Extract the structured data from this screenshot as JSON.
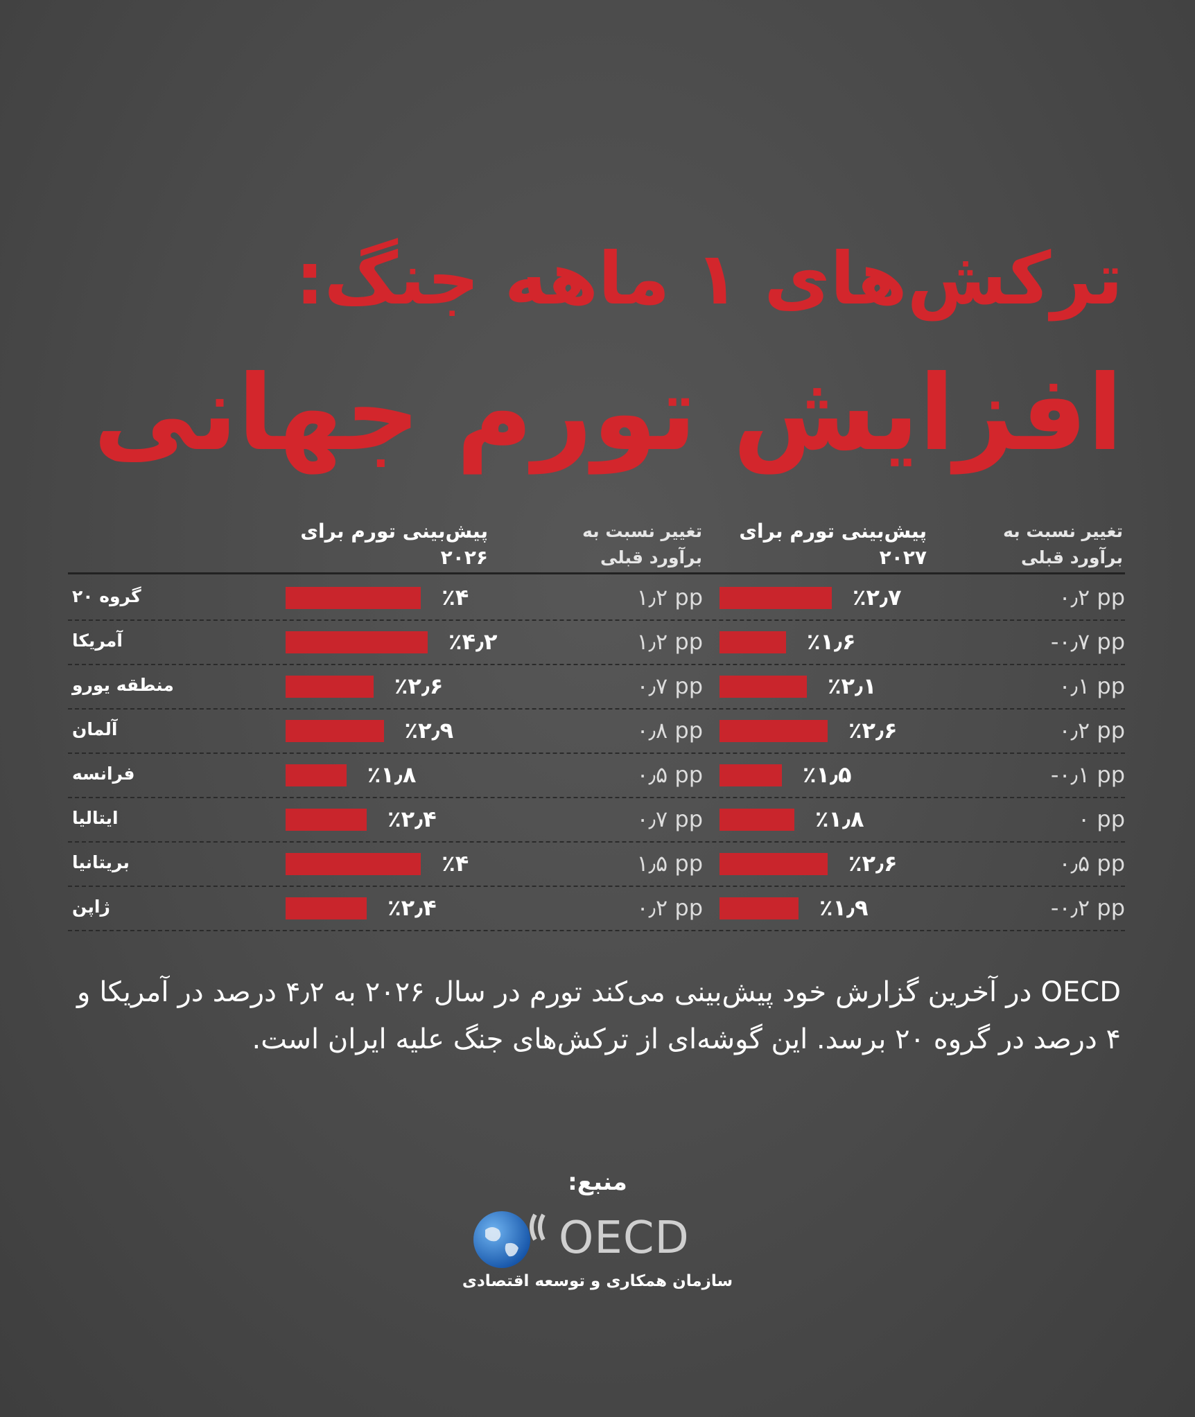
{
  "title": "ترکش‌های ۱ ماهه جنگ:",
  "subtitle": "افزایش تورم جهانی",
  "table": {
    "headers": [
      [
        "پیش‌بینی تورم برای",
        "۲۰۲۶"
      ],
      [
        "تغییر نسبت به",
        "برآورد قبلی"
      ],
      [
        "پیش‌بینی تورم برای",
        "۲۰۲۷"
      ],
      [
        "تغییر نسبت به",
        "برآورد قبلی"
      ]
    ],
    "rows": [
      {
        "country": "گروه ۲۰",
        "forecast_2026": {
          "value": 4,
          "label": "٪۴"
        },
        "change_2026": "۱٫۲ pp",
        "forecast_2027": {
          "value": 2.7,
          "label": "٪۲٫۷"
        },
        "change_2027": "۰٫۲ pp"
      },
      {
        "country": "آمریکا",
        "forecast_2026": {
          "value": 4.2,
          "label": "٪۴٫۲"
        },
        "change_2026": "۱٫۲ pp",
        "forecast_2027": {
          "value": 1.6,
          "label": "٪۱٫۶"
        },
        "change_2027": "-۰٫۷ pp"
      },
      {
        "country": "منطقه یورو",
        "forecast_2026": {
          "value": 2.6,
          "label": "٪۲٫۶"
        },
        "change_2026": "۰٫۷ pp",
        "forecast_2027": {
          "value": 2.1,
          "label": "٪۲٫۱"
        },
        "change_2027": "۰٫۱ pp"
      },
      {
        "country": "آلمان",
        "forecast_2026": {
          "value": 2.9,
          "label": "٪۲٫۹"
        },
        "change_2026": "۰٫۸ pp",
        "forecast_2027": {
          "value": 2.6,
          "label": "٪۲٫۶"
        },
        "change_2027": "۰٫۲ pp"
      },
      {
        "country": "فرانسه",
        "forecast_2026": {
          "value": 1.8,
          "label": "٪۱٫۸"
        },
        "change_2026": "۰٫۵ pp",
        "forecast_2027": {
          "value": 1.5,
          "label": "٪۱٫۵"
        },
        "change_2027": "-۰٫۱ pp"
      },
      {
        "country": "ایتالیا",
        "forecast_2026": {
          "value": 2.4,
          "label": "٪۲٫۴"
        },
        "change_2026": "۰٫۷ pp",
        "forecast_2027": {
          "value": 1.8,
          "label": "٪۱٫۸"
        },
        "change_2027": "۰ pp"
      },
      {
        "country": "بریتانیا",
        "forecast_2026": {
          "value": 4,
          "label": "٪۴"
        },
        "change_2026": "۱٫۵ pp",
        "forecast_2027": {
          "value": 2.6,
          "label": "٪۲٫۶"
        },
        "change_2027": "۰٫۵ pp"
      },
      {
        "country": "ژاپن",
        "forecast_2026": {
          "value": 2.4,
          "label": "٪۲٫۴"
        },
        "change_2026": "۰٫۲ pp",
        "forecast_2027": {
          "value": 1.9,
          "label": "٪۱٫۹"
        },
        "change_2027": "-۰٫۲ pp"
      }
    ]
  },
  "description": "OECD در آخرین گزارش خود پیش‌بینی می‌کند تورم در سال ۲۰۲۶ به ۴٫۲ درصد در آمریکا و ۴ درصد در گروه ۲۰ برسد. این گوشه‌ای از ترکش‌های جنگ علیه ایران است.",
  "source": {
    "label": "منبع:",
    "name": "OECD",
    "caption": "سازمان همکاری و توسعه اقتصادی"
  }
}
